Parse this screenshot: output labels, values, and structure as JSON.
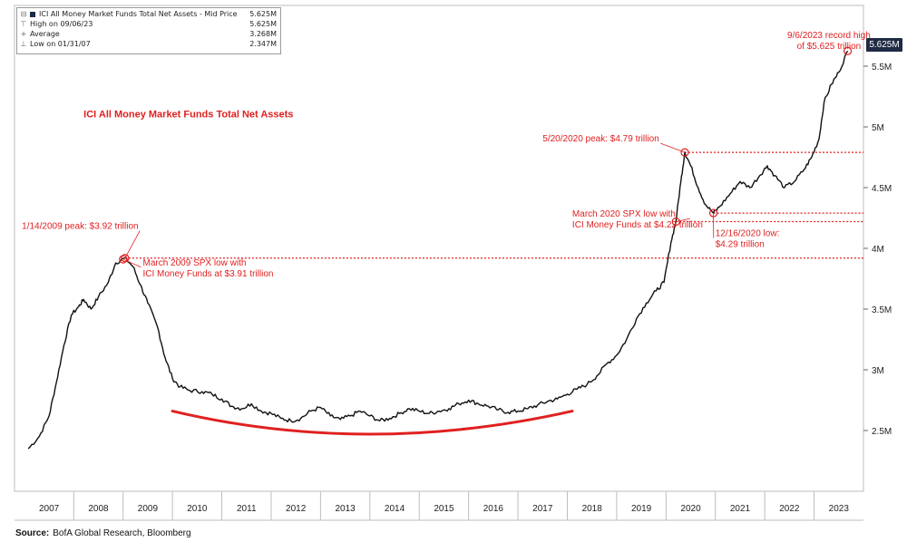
{
  "legend": {
    "title_label": "ICI All Money Market Funds Total Net Assets - Mid Price",
    "title_value": "5.625M",
    "rows": [
      {
        "glyph": "⊤",
        "label": "High on 09/06/23",
        "value": "5.625M"
      },
      {
        "glyph": "+",
        "label": "Average",
        "value": "3.268M"
      },
      {
        "glyph": "⊥",
        "label": "Low on 01/31/07",
        "value": "2.347M"
      }
    ]
  },
  "source": {
    "label": "Source:",
    "text": "BofA Global Research, Bloomberg"
  },
  "last_value_badge": "5.625M",
  "chart_data": {
    "type": "line",
    "title": "ICI All Money Market Funds Total Net Assets",
    "xlabel": "",
    "ylabel": "",
    "xlim": [
      2006.8,
      2024.0
    ],
    "ylim": [
      2.0,
      6.0
    ],
    "x_ticks": [
      "2007",
      "2008",
      "2009",
      "2010",
      "2011",
      "2012",
      "2013",
      "2014",
      "2015",
      "2016",
      "2017",
      "2018",
      "2019",
      "2020",
      "2021",
      "2022",
      "2023"
    ],
    "y_ticks": [
      {
        "value": 2.5,
        "label": "2.5M"
      },
      {
        "value": 3.0,
        "label": "3M"
      },
      {
        "value": 3.5,
        "label": "3.5M"
      },
      {
        "value": 4.0,
        "label": "4M"
      },
      {
        "value": 4.5,
        "label": "4.5M"
      },
      {
        "value": 5.0,
        "label": "5M"
      },
      {
        "value": 5.5,
        "label": "5.5M"
      }
    ],
    "series": [
      {
        "name": "ICI All Money Market Funds Total Net Assets",
        "color": "#111111",
        "points": [
          [
            2007.08,
            2.35
          ],
          [
            2007.3,
            2.45
          ],
          [
            2007.5,
            2.62
          ],
          [
            2007.65,
            2.9
          ],
          [
            2007.8,
            3.2
          ],
          [
            2007.95,
            3.45
          ],
          [
            2008.1,
            3.52
          ],
          [
            2008.2,
            3.58
          ],
          [
            2008.35,
            3.5
          ],
          [
            2008.5,
            3.6
          ],
          [
            2008.7,
            3.72
          ],
          [
            2008.85,
            3.88
          ],
          [
            2009.04,
            3.92
          ],
          [
            2009.2,
            3.85
          ],
          [
            2009.35,
            3.7
          ],
          [
            2009.5,
            3.55
          ],
          [
            2009.7,
            3.35
          ],
          [
            2009.85,
            3.1
          ],
          [
            2010.0,
            2.93
          ],
          [
            2010.15,
            2.86
          ],
          [
            2010.35,
            2.83
          ],
          [
            2010.6,
            2.82
          ],
          [
            2010.8,
            2.8
          ],
          [
            2011.0,
            2.76
          ],
          [
            2011.2,
            2.7
          ],
          [
            2011.4,
            2.68
          ],
          [
            2011.6,
            2.72
          ],
          [
            2011.8,
            2.66
          ],
          [
            2012.0,
            2.64
          ],
          [
            2012.2,
            2.6
          ],
          [
            2012.4,
            2.58
          ],
          [
            2012.6,
            2.6
          ],
          [
            2012.8,
            2.66
          ],
          [
            2013.0,
            2.69
          ],
          [
            2013.2,
            2.62
          ],
          [
            2013.4,
            2.59
          ],
          [
            2013.6,
            2.62
          ],
          [
            2013.8,
            2.66
          ],
          [
            2014.0,
            2.62
          ],
          [
            2014.2,
            2.58
          ],
          [
            2014.4,
            2.6
          ],
          [
            2014.6,
            2.64
          ],
          [
            2014.8,
            2.68
          ],
          [
            2015.0,
            2.66
          ],
          [
            2015.2,
            2.64
          ],
          [
            2015.4,
            2.66
          ],
          [
            2015.6,
            2.68
          ],
          [
            2015.8,
            2.72
          ],
          [
            2016.0,
            2.75
          ],
          [
            2016.2,
            2.72
          ],
          [
            2016.4,
            2.7
          ],
          [
            2016.6,
            2.67
          ],
          [
            2016.8,
            2.65
          ],
          [
            2017.0,
            2.66
          ],
          [
            2017.2,
            2.68
          ],
          [
            2017.4,
            2.71
          ],
          [
            2017.6,
            2.74
          ],
          [
            2017.8,
            2.76
          ],
          [
            2018.0,
            2.8
          ],
          [
            2018.2,
            2.84
          ],
          [
            2018.4,
            2.88
          ],
          [
            2018.6,
            2.95
          ],
          [
            2018.8,
            3.05
          ],
          [
            2019.0,
            3.12
          ],
          [
            2019.2,
            3.25
          ],
          [
            2019.4,
            3.42
          ],
          [
            2019.6,
            3.55
          ],
          [
            2019.8,
            3.65
          ],
          [
            2019.96,
            3.72
          ],
          [
            2020.1,
            4.05
          ],
          [
            2020.2,
            4.22
          ],
          [
            2020.3,
            4.55
          ],
          [
            2020.38,
            4.79
          ],
          [
            2020.5,
            4.68
          ],
          [
            2020.65,
            4.5
          ],
          [
            2020.8,
            4.36
          ],
          [
            2020.96,
            4.29
          ],
          [
            2021.1,
            4.35
          ],
          [
            2021.3,
            4.45
          ],
          [
            2021.5,
            4.55
          ],
          [
            2021.7,
            4.5
          ],
          [
            2021.9,
            4.6
          ],
          [
            2022.05,
            4.68
          ],
          [
            2022.2,
            4.6
          ],
          [
            2022.4,
            4.5
          ],
          [
            2022.6,
            4.55
          ],
          [
            2022.8,
            4.65
          ],
          [
            2022.95,
            4.75
          ],
          [
            2023.1,
            4.9
          ],
          [
            2023.2,
            5.2
          ],
          [
            2023.35,
            5.35
          ],
          [
            2023.5,
            5.45
          ],
          [
            2023.68,
            5.625
          ]
        ]
      }
    ],
    "trend_curve": {
      "color": "#e02020",
      "points": [
        [
          2010.0,
          2.66
        ],
        [
          2014.0,
          2.47
        ],
        [
          2018.1,
          2.66
        ]
      ]
    },
    "reference_lines": [
      {
        "y": 3.92,
        "x_start": 2009.04,
        "color": "#e02020"
      },
      {
        "y": 4.79,
        "x_start": 2020.38,
        "color": "#e02020"
      },
      {
        "y": 4.29,
        "x_start": 2020.96,
        "color": "#e02020"
      },
      {
        "y": 4.22,
        "x_start": 2020.2,
        "color": "#e02020"
      }
    ],
    "annotations": [
      {
        "text": [
          "1/14/2009 peak: $3.92 trillion"
        ],
        "x": 2009.04,
        "y": 3.92,
        "label_x": 2006.95,
        "label_y": 4.16,
        "anchor": "start"
      },
      {
        "text": [
          "March 2009 SPX low with",
          "ICI Money Funds at $3.91 trillion"
        ],
        "x": 2009.0,
        "y": 3.91,
        "label_x": 2009.4,
        "label_y": 3.86,
        "anchor": "start"
      },
      {
        "text": [
          "5/20/2020 peak: $4.79 trillion"
        ],
        "x": 2020.38,
        "y": 4.79,
        "label_x": 2017.5,
        "label_y": 4.88,
        "anchor": "start"
      },
      {
        "text": [
          "March 2020 SPX low with",
          "ICI Money Funds at $4.22 trillion"
        ],
        "x": 2020.2,
        "y": 4.22,
        "label_x": 2018.1,
        "label_y": 4.26,
        "anchor": "start"
      },
      {
        "text": [
          "12/16/2020 low:",
          "$4.29 trillion"
        ],
        "x": 2020.96,
        "y": 4.29,
        "label_x": 2021.0,
        "label_y": 4.1,
        "anchor": "start"
      },
      {
        "text": [
          "9/6/2023 record high",
          "of $5.625 trillion"
        ],
        "x": 2023.68,
        "y": 5.625,
        "label_x": 2023.3,
        "label_y": 5.73,
        "anchor": "middle"
      }
    ],
    "inner_title": {
      "text": "ICI All Money Market Funds Total Net Assets",
      "x": 2008.2,
      "y": 5.08,
      "color": "#e02020"
    },
    "grid": false,
    "legend_position": "top-left"
  }
}
